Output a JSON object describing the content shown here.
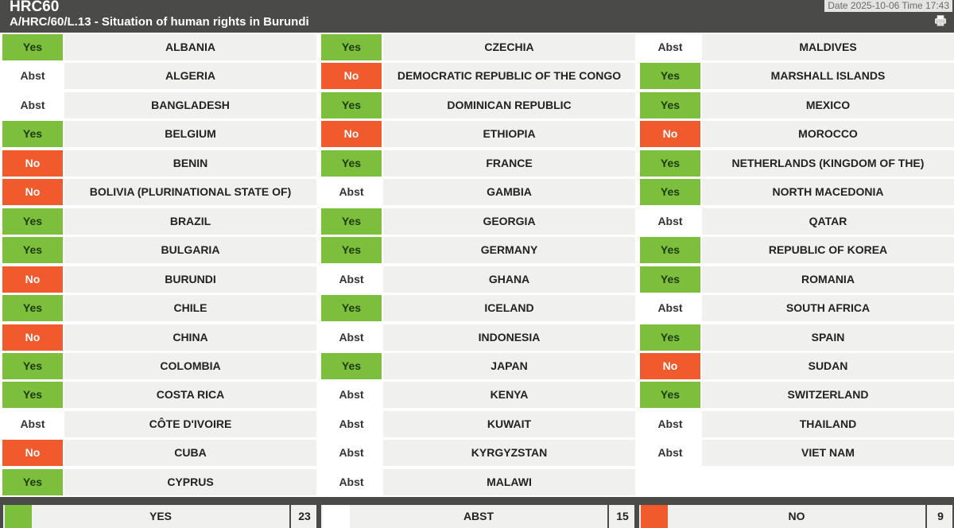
{
  "header": {
    "session": "HRC60",
    "resolution": "A/HRC/60/L.13 - Situation of human rights in Burundi",
    "datetime": "Date 2025-10-06 Time 17:43",
    "print_icon": "printer-icon"
  },
  "colors": {
    "yes": "#7cbf3c",
    "no": "#f05a2c",
    "abst": "#ffffff"
  },
  "columns": [
    [
      {
        "vote": "Yes",
        "country": "ALBANIA"
      },
      {
        "vote": "Abst",
        "country": "ALGERIA"
      },
      {
        "vote": "Abst",
        "country": "BANGLADESH"
      },
      {
        "vote": "Yes",
        "country": "BELGIUM"
      },
      {
        "vote": "No",
        "country": "BENIN"
      },
      {
        "vote": "No",
        "country": "BOLIVIA (PLURINATIONAL STATE OF)"
      },
      {
        "vote": "Yes",
        "country": "BRAZIL"
      },
      {
        "vote": "Yes",
        "country": "BULGARIA"
      },
      {
        "vote": "No",
        "country": "BURUNDI"
      },
      {
        "vote": "Yes",
        "country": "CHILE"
      },
      {
        "vote": "No",
        "country": "CHINA"
      },
      {
        "vote": "Yes",
        "country": "COLOMBIA"
      },
      {
        "vote": "Yes",
        "country": "COSTA RICA"
      },
      {
        "vote": "Abst",
        "country": "CÔTE D'IVOIRE"
      },
      {
        "vote": "No",
        "country": "CUBA"
      },
      {
        "vote": "Yes",
        "country": "CYPRUS"
      }
    ],
    [
      {
        "vote": "Yes",
        "country": "CZECHIA"
      },
      {
        "vote": "No",
        "country": "DEMOCRATIC REPUBLIC OF THE CONGO"
      },
      {
        "vote": "Yes",
        "country": "DOMINICAN REPUBLIC"
      },
      {
        "vote": "No",
        "country": "ETHIOPIA"
      },
      {
        "vote": "Yes",
        "country": "FRANCE"
      },
      {
        "vote": "Abst",
        "country": "GAMBIA"
      },
      {
        "vote": "Yes",
        "country": "GEORGIA"
      },
      {
        "vote": "Yes",
        "country": "GERMANY"
      },
      {
        "vote": "Abst",
        "country": "GHANA"
      },
      {
        "vote": "Yes",
        "country": "ICELAND"
      },
      {
        "vote": "Abst",
        "country": "INDONESIA"
      },
      {
        "vote": "Yes",
        "country": "JAPAN"
      },
      {
        "vote": "Abst",
        "country": "KENYA"
      },
      {
        "vote": "Abst",
        "country": "KUWAIT"
      },
      {
        "vote": "Abst",
        "country": "KYRGYZSTAN"
      },
      {
        "vote": "Abst",
        "country": "MALAWI"
      }
    ],
    [
      {
        "vote": "Abst",
        "country": "MALDIVES"
      },
      {
        "vote": "Yes",
        "country": "MARSHALL ISLANDS"
      },
      {
        "vote": "Yes",
        "country": "MEXICO"
      },
      {
        "vote": "No",
        "country": "MOROCCO"
      },
      {
        "vote": "Yes",
        "country": "NETHERLANDS (KINGDOM OF THE)"
      },
      {
        "vote": "Yes",
        "country": "NORTH MACEDONIA"
      },
      {
        "vote": "Abst",
        "country": "QATAR"
      },
      {
        "vote": "Yes",
        "country": "REPUBLIC OF KOREA"
      },
      {
        "vote": "Yes",
        "country": "ROMANIA"
      },
      {
        "vote": "Abst",
        "country": "SOUTH AFRICA"
      },
      {
        "vote": "Yes",
        "country": "SPAIN"
      },
      {
        "vote": "No",
        "country": "SUDAN"
      },
      {
        "vote": "Yes",
        "country": "SWITZERLAND"
      },
      {
        "vote": "Abst",
        "country": "THAILAND"
      },
      {
        "vote": "Abst",
        "country": "VIET NAM"
      }
    ]
  ],
  "totals": [
    {
      "key": "yes",
      "label": "YES",
      "count": "23"
    },
    {
      "key": "abst",
      "label": "ABST",
      "count": "15"
    },
    {
      "key": "no",
      "label": "NO",
      "count": "9"
    }
  ]
}
